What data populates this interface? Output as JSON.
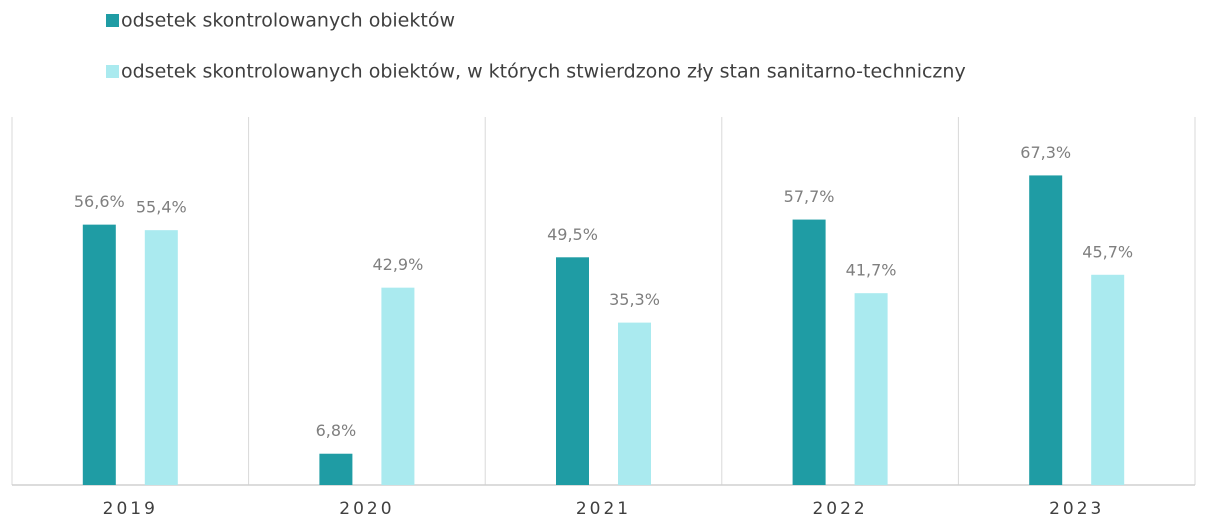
{
  "chart_data": {
    "type": "bar",
    "categories": [
      "2019",
      "2020",
      "2021",
      "2022",
      "2023"
    ],
    "series": [
      {
        "name": "odsetek skontrolowanych obiektów",
        "color": "#1f9ca4",
        "values": [
          56.6,
          6.8,
          49.5,
          57.7,
          67.3
        ],
        "value_labels": [
          "56,6%",
          "6,8%",
          "49,5%",
          "57,7%",
          "67,3%"
        ]
      },
      {
        "name": "odsetek skontrolowanych obiektów, w których stwierdzono zły stan sanitarno-techniczny",
        "color": "#aaeaef",
        "values": [
          55.4,
          42.9,
          35.3,
          41.7,
          45.7
        ],
        "value_labels": [
          "55,4%",
          "42,9%",
          "35,3%",
          "41,7%",
          "45,7%"
        ]
      }
    ],
    "ylim": [
      0,
      80
    ]
  }
}
